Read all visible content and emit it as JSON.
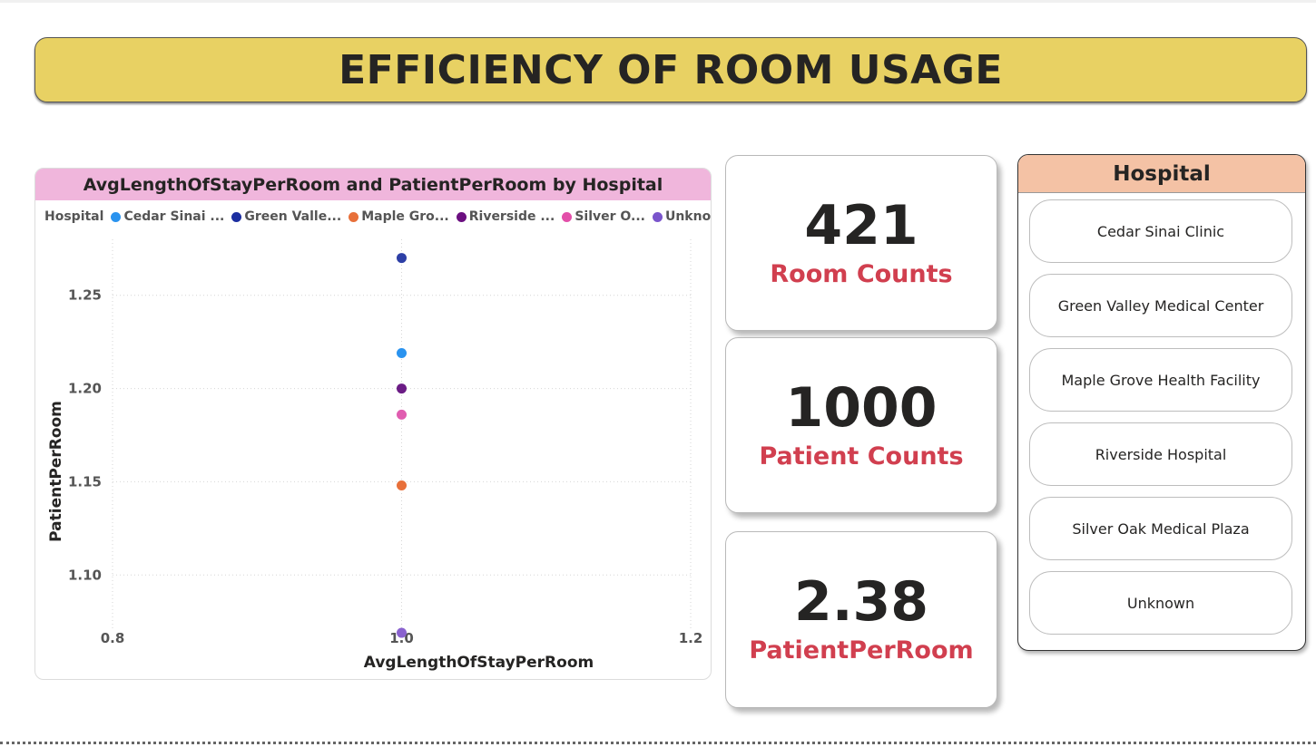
{
  "title": "EFFICIENCY OF ROOM USAGE",
  "chart": {
    "legend_title": "Hospital",
    "legend": [
      {
        "label": "Cedar Sinai ...",
        "color": "#2a93ef"
      },
      {
        "label": "Green Valle...",
        "color": "#1c2ea0"
      },
      {
        "label": "Maple Gro...",
        "color": "#e8703a"
      },
      {
        "label": "Riverside ...",
        "color": "#6b0f80"
      },
      {
        "label": "Silver O...",
        "color": "#e34fa9"
      },
      {
        "label": "Unknown",
        "color": "#7a55cc"
      }
    ]
  },
  "chart_data": {
    "type": "scatter",
    "title": "AvgLengthOfStayPerRoom and PatientPerRoom by Hospital",
    "xlabel": "AvgLengthOfStayPerRoom",
    "ylabel": "PatientPerRoom",
    "xlim": [
      0.8,
      1.2
    ],
    "ylim": [
      1.07,
      1.28
    ],
    "xticks": [
      "0.8",
      "1.0",
      "1.2"
    ],
    "yticks": [
      "1.10",
      "1.15",
      "1.20",
      "1.25"
    ],
    "grid": true,
    "legend_position": "top-left",
    "points": [
      {
        "name": "Green Valley Medical Center",
        "x": 1.0,
        "y": 1.27,
        "color": "#2d3fa6"
      },
      {
        "name": "Cedar Sinai Clinic",
        "x": 1.0,
        "y": 1.219,
        "color": "#2a93ef"
      },
      {
        "name": "Riverside Hospital",
        "x": 1.0,
        "y": 1.2,
        "color": "#6b1c85"
      },
      {
        "name": "Silver Oak Medical Plaza",
        "x": 1.0,
        "y": 1.186,
        "color": "#e05db0"
      },
      {
        "name": "Maple Grove Health Facility",
        "x": 1.0,
        "y": 1.148,
        "color": "#e8703a"
      },
      {
        "name": "Unknown",
        "x": 1.0,
        "y": 1.069,
        "color": "#8a62cf"
      }
    ]
  },
  "kpis": [
    {
      "value": "421",
      "label": "Room Counts"
    },
    {
      "value": "1000",
      "label": "Patient Counts"
    },
    {
      "value": "2.38",
      "label": "PatientPerRoom"
    }
  ],
  "slicer": {
    "title": "Hospital",
    "items": [
      "Cedar Sinai Clinic",
      "Green Valley Medical Center",
      "Maple Grove Health Facility",
      "Riverside Hospital",
      "Silver Oak Medical Plaza",
      "Unknown"
    ]
  }
}
